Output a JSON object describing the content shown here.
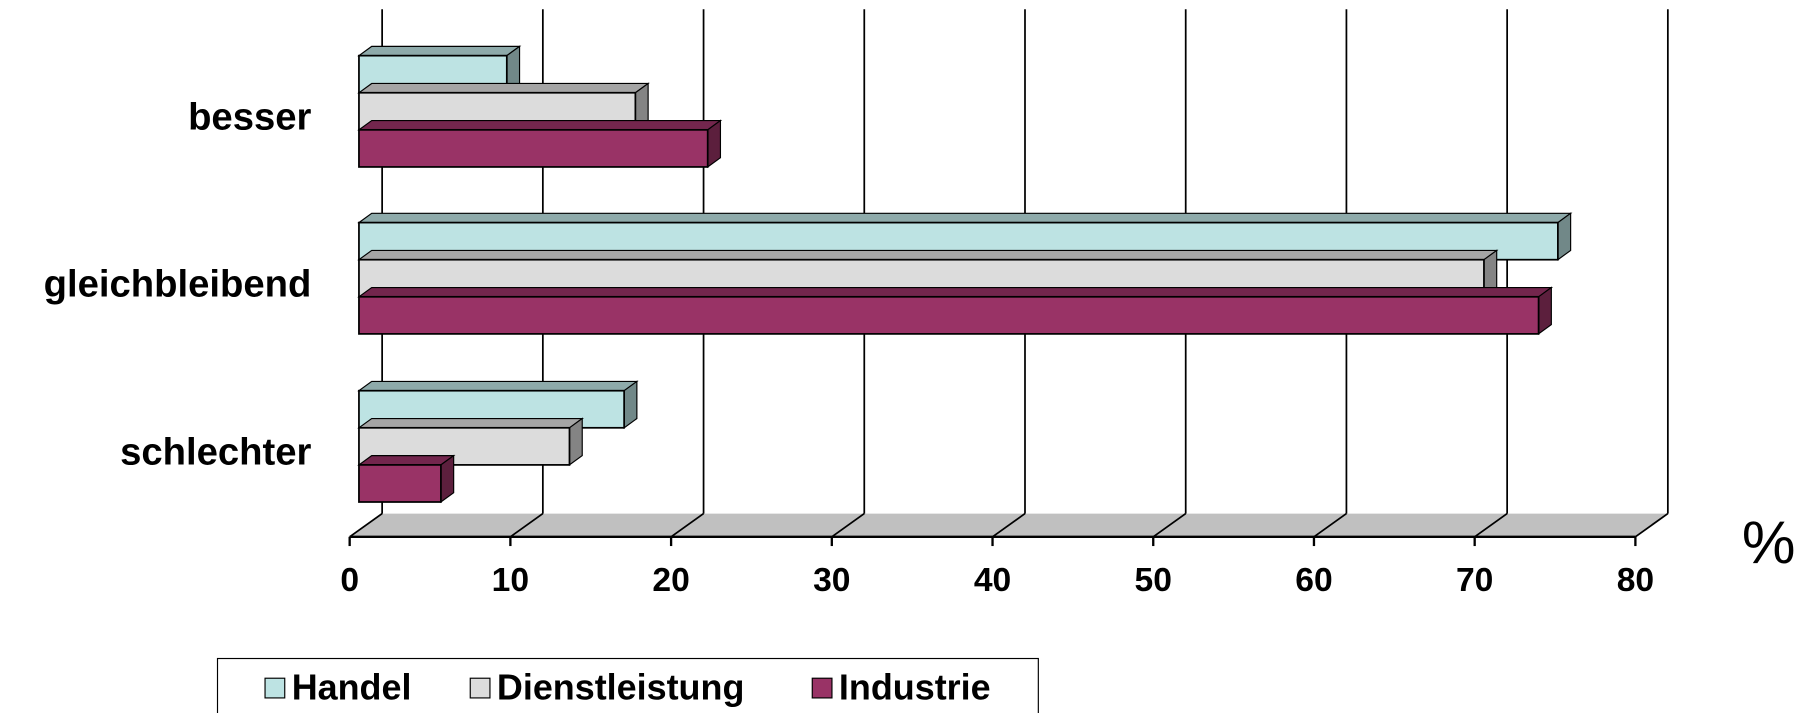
{
  "chart_data": {
    "type": "bar",
    "orientation": "horizontal",
    "categories": [
      "besser",
      "gleichbleibend",
      "schlechter"
    ],
    "series": [
      {
        "name": "Handel",
        "color": "#bde3e3",
        "values": [
          9.2,
          74.6,
          16.5
        ]
      },
      {
        "name": "Dienstleistung",
        "color": "#dcdcdc",
        "values": [
          17.2,
          70.0,
          13.1
        ]
      },
      {
        "name": "Industrie",
        "color": "#993366",
        "values": [
          21.7,
          73.4,
          5.1
        ]
      }
    ],
    "x_label": "%",
    "xlim": [
      0,
      80
    ],
    "xticks": [
      0,
      10,
      20,
      30,
      40,
      50,
      60,
      70,
      80
    ],
    "grid": true,
    "legend": "bottom"
  }
}
